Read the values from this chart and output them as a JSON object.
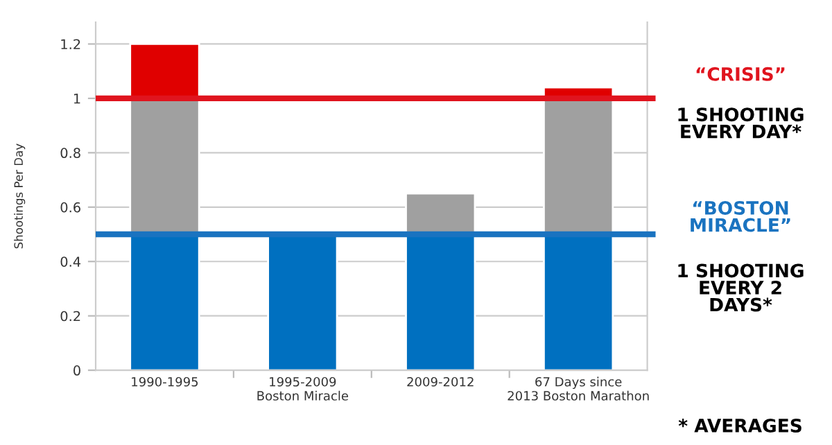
{
  "chart_data": {
    "type": "bar",
    "stacked": true,
    "ylabel": "Shootings Per Day",
    "categories": [
      "1990-1995",
      "1995-2009\nBoston Miracle",
      "2009-2012",
      "67 Days since\n2013 Boston Marathon"
    ],
    "series": [
      {
        "color": "#0070c0",
        "values": [
          0.5,
          0.5,
          0.5,
          0.5
        ]
      },
      {
        "color": "#a0a0a0",
        "values": [
          0.5,
          null,
          0.15,
          0.5
        ]
      },
      {
        "color": "#e00000",
        "values": [
          0.2,
          null,
          null,
          0.04
        ]
      }
    ],
    "ylim": [
      0,
      1.28
    ],
    "yticks": [
      0,
      0.2,
      0.4,
      0.6,
      0.8,
      1,
      1.2
    ],
    "grid": "y",
    "ref_lines": [
      {
        "axis": "y",
        "value": 1,
        "color": "#e0141e"
      },
      {
        "axis": "y",
        "value": 0.5,
        "color": "#1a73c0"
      }
    ],
    "annotations": [
      "“CRISIS”",
      "1 SHOOTING\nEVERY DAY*",
      "“BOSTON\nMIRACLE”",
      "1 SHOOTING\nEVERY 2\nDAYS*",
      "* AVERAGES"
    ]
  }
}
